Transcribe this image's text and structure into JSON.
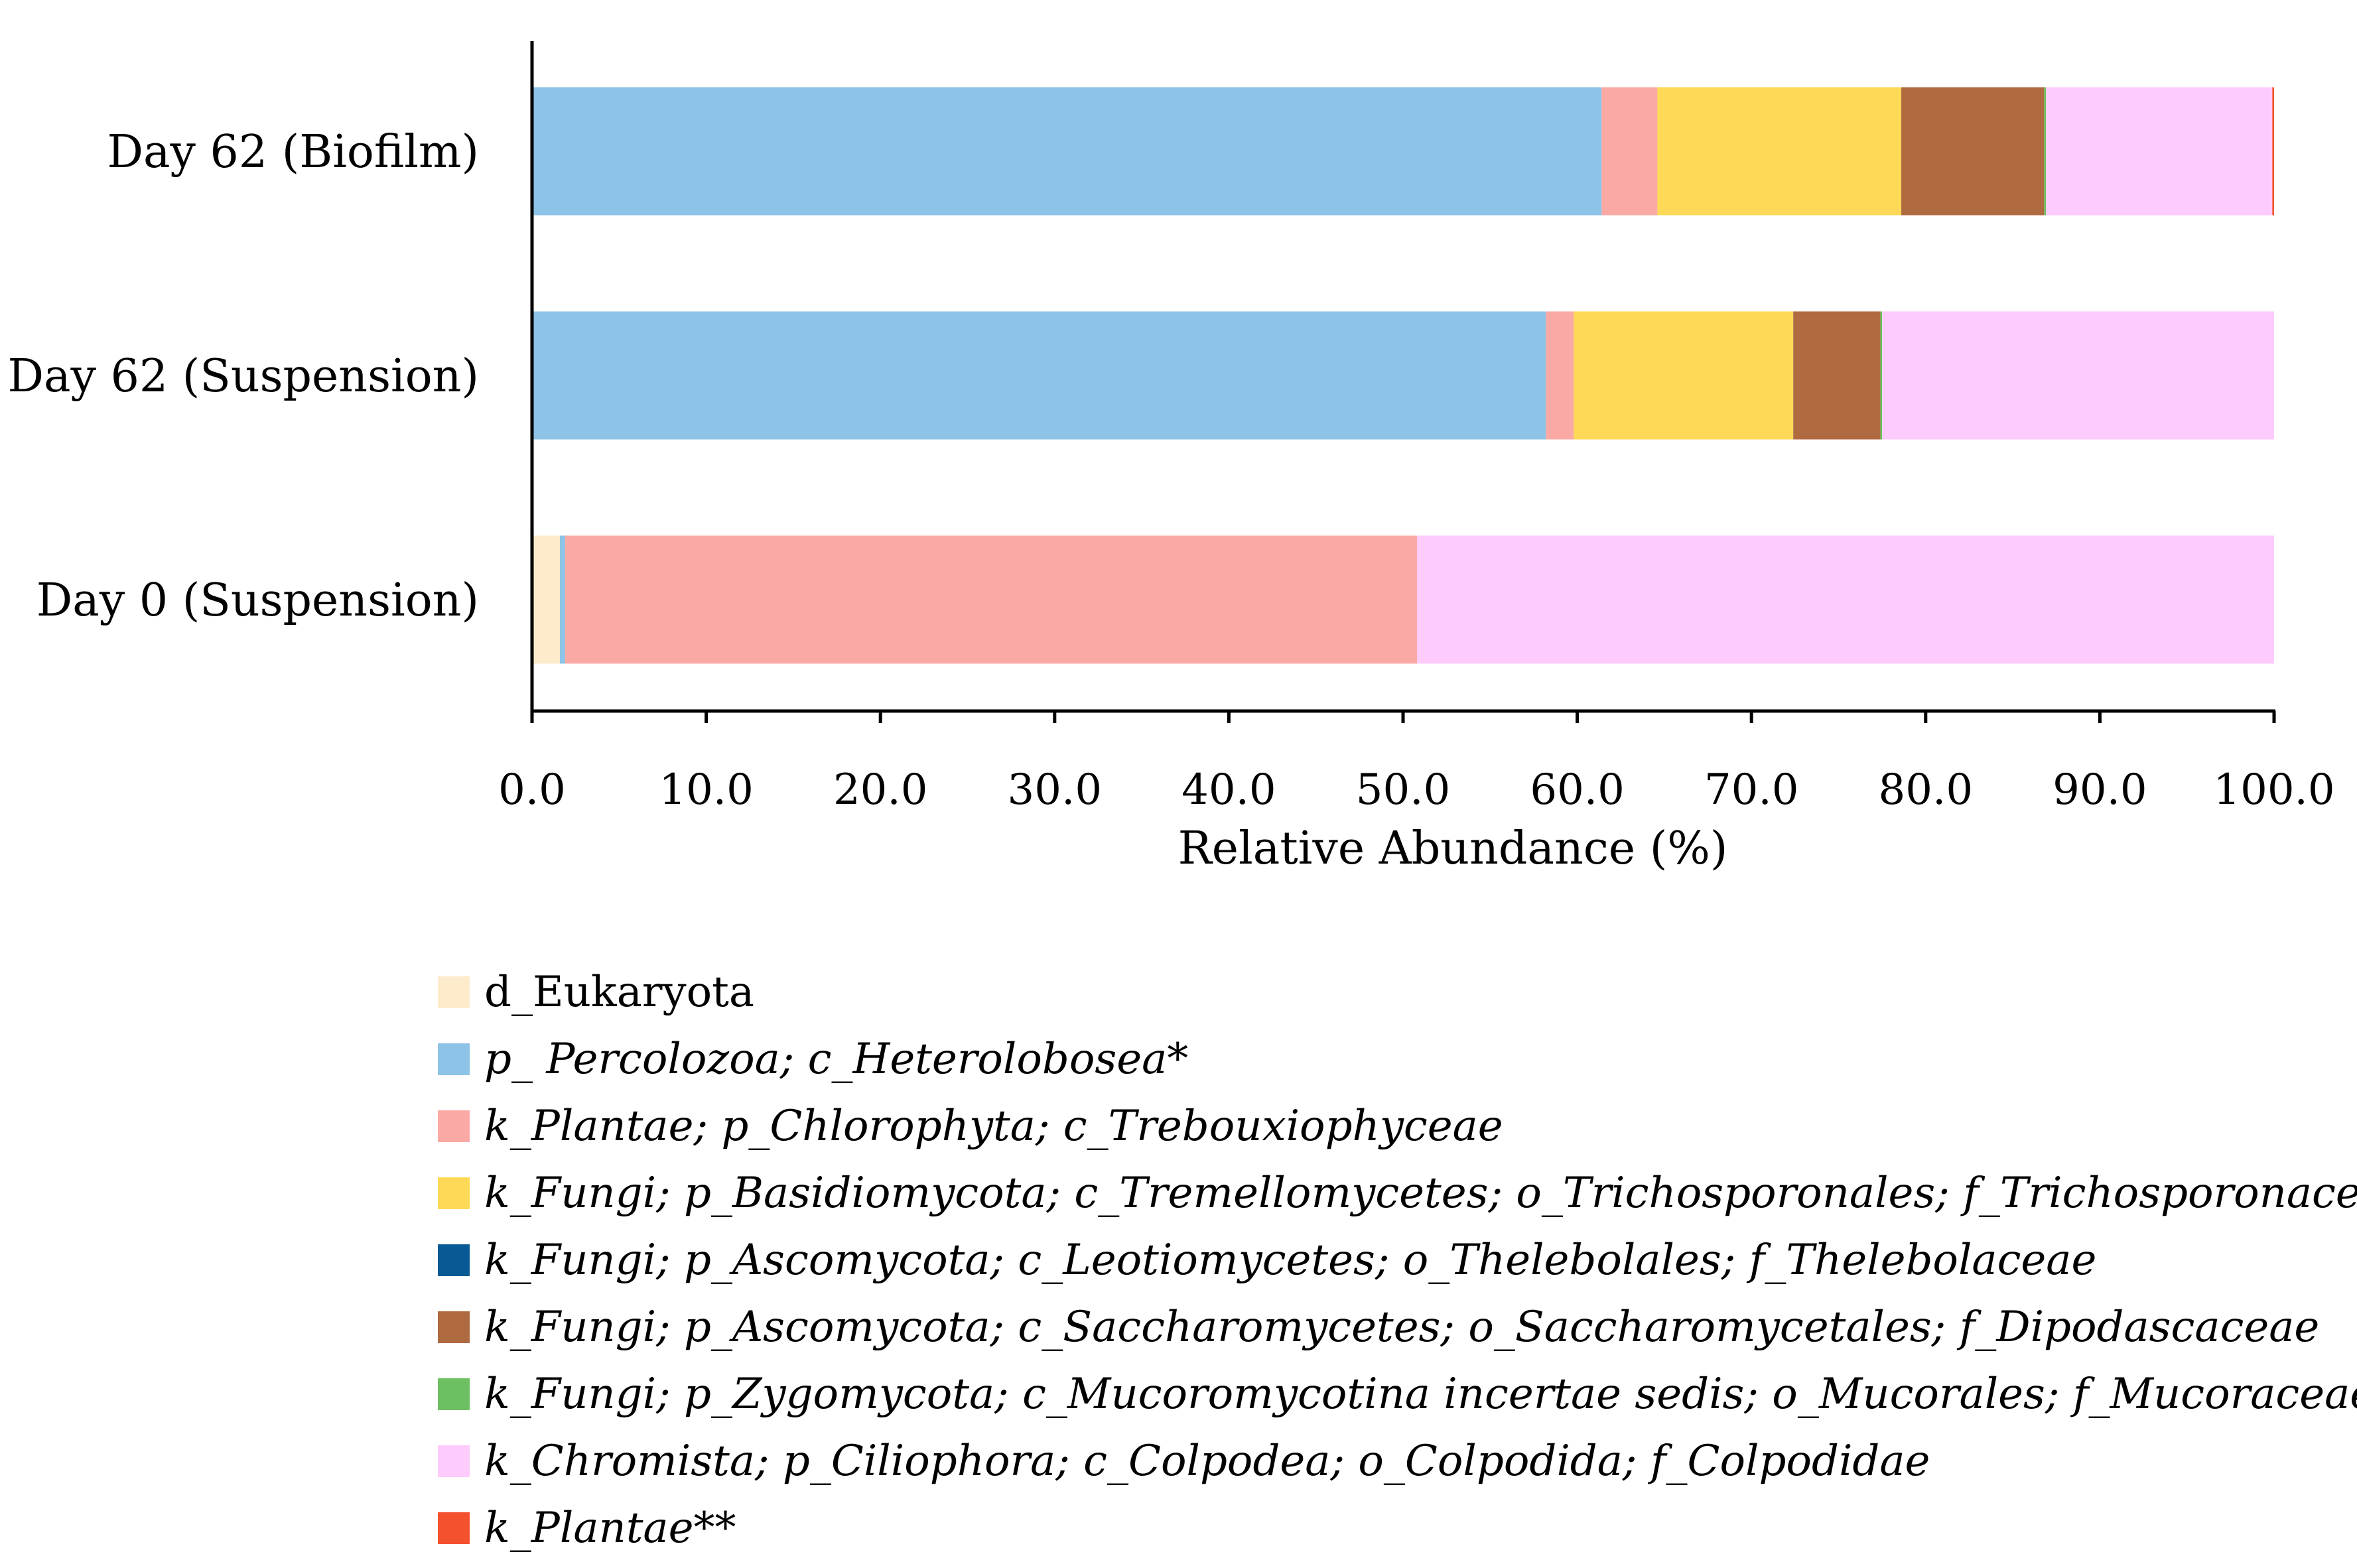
{
  "chart_data": {
    "type": "bar",
    "orientation": "horizontal",
    "stacked": true,
    "title": "",
    "xlabel": "Relative Abundance (%)",
    "ylabel": "",
    "xlim": [
      0,
      100
    ],
    "x_ticks": [
      "0.0",
      "10.0",
      "20.0",
      "30.0",
      "40.0",
      "50.0",
      "60.0",
      "70.0",
      "80.0",
      "90.0",
      "100.0"
    ],
    "categories": [
      "Day 62 (Biofilm)",
      "Day 62 (Suspension)",
      "Day 0 (Suspension)"
    ],
    "series": [
      {
        "name": "d_Eukaryota",
        "color": "#FDEBCB",
        "italic": false,
        "values": [
          0.0,
          0.0,
          1.6
        ]
      },
      {
        "name": "p_ Percolozoa; c_Heterolobosea*",
        "color": "#8DC3E6",
        "italic": true,
        "values": [
          61.4,
          58.2,
          0.3
        ]
      },
      {
        "name": "k_Plantae; p_Chlorophyta; c_Trebouxiophyceae",
        "color": "#FBA9A4",
        "italic": true,
        "values": [
          3.2,
          1.6,
          48.9
        ]
      },
      {
        "name": "k_Fungi; p_Basidiomycota; c_Tremellomycetes; o_Trichosporonales; f_Trichosporonaceae",
        "color": "#FED957",
        "italic": true,
        "values": [
          14.0,
          12.6,
          0.0
        ]
      },
      {
        "name": "k_Fungi; p_Ascomycota; c_Leotiomycetes; o_Thelebolales; f_Thelebolaceae",
        "color": "#075A93",
        "italic": true,
        "values": [
          0.0,
          0.0,
          0.0
        ]
      },
      {
        "name": "k_Fungi; p_Ascomycota; c_Saccharomycetes; o_Saccharomycetales; f_Dipodascaceae",
        "color": "#B06A40",
        "italic": true,
        "values": [
          8.2,
          5.0,
          0.0
        ]
      },
      {
        "name": "k_Fungi; p_Zygomycota; c_Mucoromycotina incertae sedis; o_Mucorales; f_Mucoraceae",
        "color": "#6CC062",
        "italic": true,
        "values": [
          0.1,
          0.1,
          0.0
        ]
      },
      {
        "name": "k_Chromista; p_Ciliophora; c_Colpodea; o_Colpodida; f_Colpodidae",
        "color": "#FECBFD",
        "italic": true,
        "values": [
          13.0,
          22.5,
          49.2
        ]
      },
      {
        "name": "k_Plantae**",
        "color": "#F4512E",
        "italic": true,
        "values": [
          0.1,
          0.0,
          0.0
        ]
      }
    ]
  }
}
